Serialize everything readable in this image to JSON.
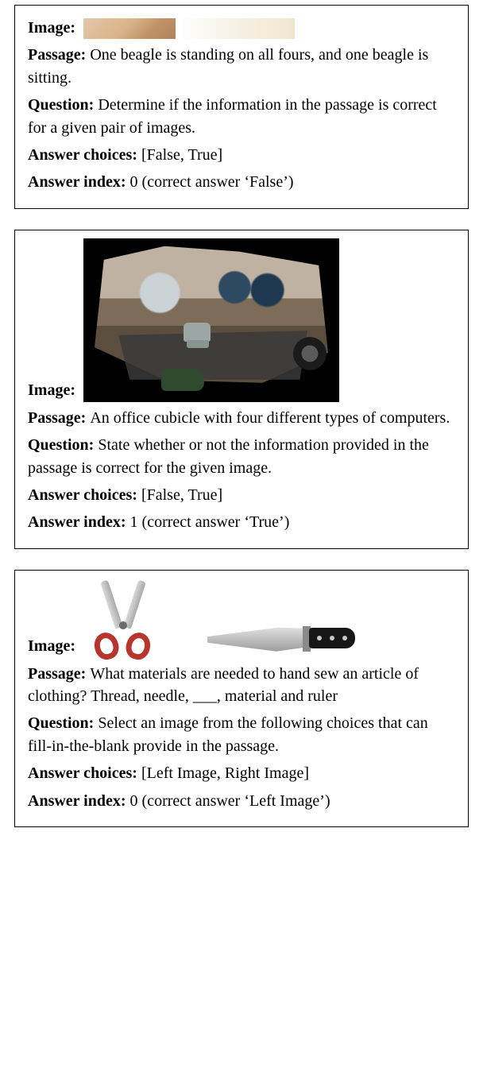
{
  "labels": {
    "image": "Image:",
    "passage": "Passage:",
    "question": "Question:",
    "choices": "Answer choices:",
    "index": "Answer index:"
  },
  "cards": [
    {
      "passage": "One beagle is standing on all fours, and one beagle is sitting.",
      "question": "Determine if the information in the passage is correct for a given pair of images.",
      "choices": "[False, True]",
      "index": "0 (correct answer ‘False’)"
    },
    {
      "passage": "An office cubicle with four different types of computers.",
      "question": "State whether or not the information provided in the passage is correct for the given image.",
      "choices": "[False, True]",
      "index": "1 (correct answer ‘True’)"
    },
    {
      "passage": "What materials are needed to hand sew an article of clothing? Thread, needle, ___, material and ruler",
      "question": "Select an image from the following choices that can fill-in-the-blank provide in the passage.",
      "choices": "[Left Image, Right Image]",
      "index": "0 (correct answer ‘Left Image’)"
    }
  ]
}
